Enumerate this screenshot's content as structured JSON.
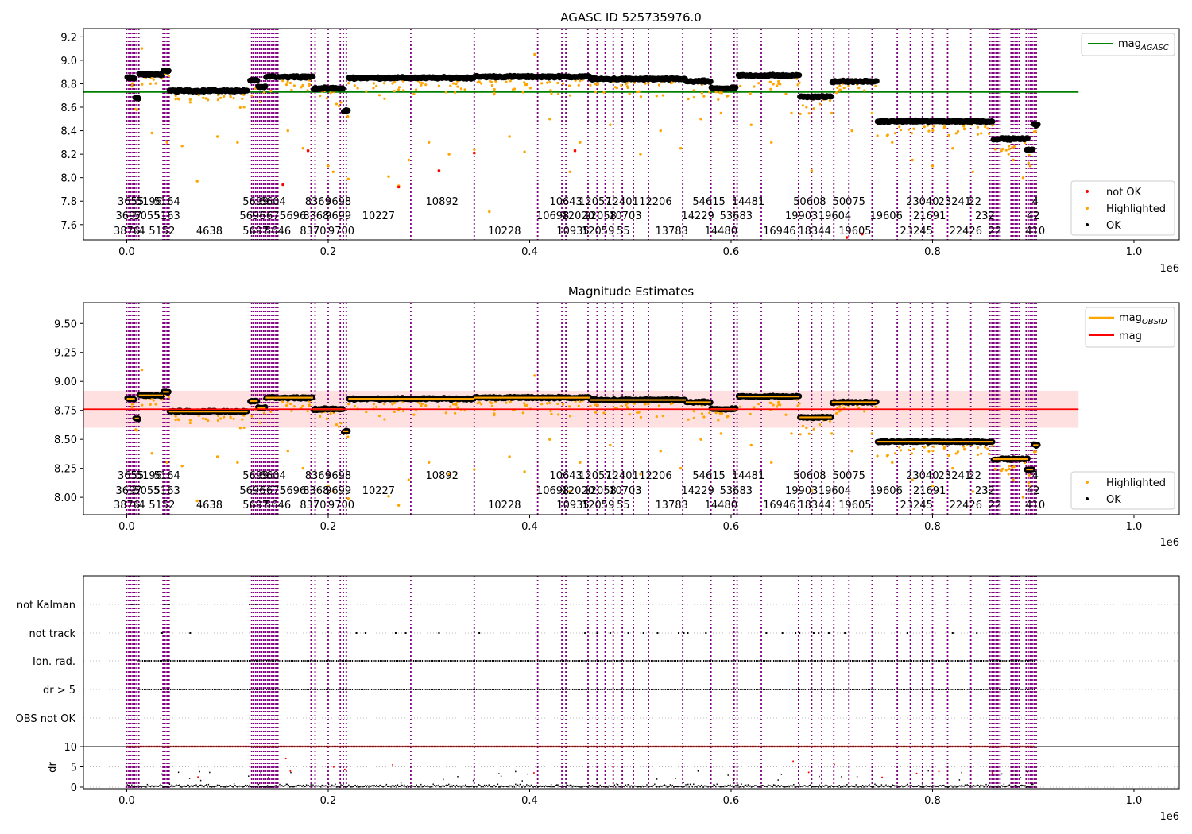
{
  "chart_data": [
    {
      "type": "scatter",
      "title": "AGASC ID 525735976.0",
      "xlabel": "",
      "ylabel": "",
      "xlim": [
        -43000,
        1045000
      ],
      "ylim": [
        7.47,
        9.27
      ],
      "xticks": [
        0.0,
        0.2,
        0.4,
        0.6,
        0.8,
        1.0
      ],
      "xtick_labels": [
        "0.0",
        "0.2",
        "0.4",
        "0.6",
        "0.8",
        "1.0"
      ],
      "x_offset_label": "1e6",
      "yticks": [
        7.6,
        7.8,
        8.0,
        8.2,
        8.4,
        8.6,
        8.8,
        9.0,
        9.2
      ],
      "ytick_labels": [
        "7.6",
        "7.8",
        "8.0",
        "8.2",
        "8.4",
        "8.6",
        "8.8",
        "9.0",
        "9.2"
      ],
      "reference_lines": [
        {
          "name": "magAGASC",
          "y": 8.73,
          "x": [
            -43000,
            945000
          ],
          "color": "#008000"
        }
      ],
      "legend_top": {
        "location": "upper right",
        "entries": [
          {
            "label": "mag",
            "subscript": "AGASC",
            "kind": "line",
            "color": "#008000"
          }
        ]
      },
      "legend_bottom": {
        "location": "lower right",
        "entries": [
          {
            "label": "not OK",
            "kind": "marker",
            "color": "#ff0000"
          },
          {
            "label": "Highlighted",
            "kind": "marker",
            "color": "#ffa500"
          },
          {
            "label": "OK",
            "kind": "marker",
            "color": "#000000"
          }
        ]
      },
      "segments": [
        {
          "x0": 0,
          "x1": 8000,
          "level": 8.85
        },
        {
          "x0": 8000,
          "x1": 12000,
          "level": 8.68
        },
        {
          "x0": 12000,
          "x1": 36000,
          "level": 8.88
        },
        {
          "x0": 36000,
          "x1": 42000,
          "level": 8.91
        },
        {
          "x0": 42000,
          "x1": 120000,
          "level": 8.74
        },
        {
          "x0": 122000,
          "x1": 130000,
          "level": 8.83
        },
        {
          "x0": 130000,
          "x1": 138000,
          "level": 8.77
        },
        {
          "x0": 138000,
          "x1": 185000,
          "level": 8.86
        },
        {
          "x0": 185000,
          "x1": 215000,
          "level": 8.76
        },
        {
          "x0": 215000,
          "x1": 220000,
          "level": 8.57
        },
        {
          "x0": 220000,
          "x1": 345000,
          "level": 8.85
        },
        {
          "x0": 345000,
          "x1": 460000,
          "level": 8.86
        },
        {
          "x0": 460000,
          "x1": 555000,
          "level": 8.84
        },
        {
          "x0": 555000,
          "x1": 580000,
          "level": 8.82
        },
        {
          "x0": 580000,
          "x1": 605000,
          "level": 8.76
        },
        {
          "x0": 607000,
          "x1": 668000,
          "level": 8.87
        },
        {
          "x0": 668000,
          "x1": 700000,
          "level": 8.69
        },
        {
          "x0": 700000,
          "x1": 745000,
          "level": 8.82
        },
        {
          "x0": 745000,
          "x1": 860000,
          "level": 8.48
        },
        {
          "x0": 860000,
          "x1": 875000,
          "level": 8.33
        },
        {
          "x0": 875000,
          "x1": 895000,
          "level": 8.33
        },
        {
          "x0": 893000,
          "x1": 900000,
          "level": 8.24
        },
        {
          "x0": 900000,
          "x1": 905000,
          "level": 8.45
        }
      ],
      "highlighted_points": [
        [
          15000,
          9.1
        ],
        [
          25000,
          8.38
        ],
        [
          40000,
          8.3
        ],
        [
          55000,
          8.27
        ],
        [
          70000,
          7.97
        ],
        [
          90000,
          8.35
        ],
        [
          110000,
          8.3
        ],
        [
          160000,
          8.4
        ],
        [
          175000,
          8.25
        ],
        [
          200000,
          8.1
        ],
        [
          205000,
          8.05
        ],
        [
          220000,
          7.99
        ],
        [
          260000,
          8.01
        ],
        [
          270000,
          7.93
        ],
        [
          280000,
          8.15
        ],
        [
          300000,
          8.3
        ],
        [
          320000,
          8.2
        ],
        [
          345000,
          8.24
        ],
        [
          360000,
          7.71
        ],
        [
          380000,
          8.35
        ],
        [
          395000,
          8.22
        ],
        [
          405000,
          9.05
        ],
        [
          420000,
          8.5
        ],
        [
          440000,
          8.05
        ],
        [
          450000,
          8.3
        ],
        [
          480000,
          8.45
        ],
        [
          510000,
          8.2
        ],
        [
          530000,
          8.4
        ],
        [
          550000,
          8.25
        ],
        [
          570000,
          8.5
        ],
        [
          590000,
          8.55
        ],
        [
          620000,
          8.45
        ],
        [
          640000,
          8.3
        ],
        [
          660000,
          8.55
        ],
        [
          680000,
          8.06
        ],
        [
          700000,
          8.55
        ],
        [
          720000,
          8.4
        ],
        [
          740000,
          8.55
        ],
        [
          760000,
          8.3
        ],
        [
          780000,
          8.15
        ],
        [
          800000,
          8.1
        ],
        [
          820000,
          8.25
        ],
        [
          840000,
          8.05
        ],
        [
          880000,
          8.15
        ],
        [
          890000,
          8.0
        ],
        [
          897000,
          8.1
        ]
      ],
      "notok_points": [
        [
          155000,
          7.94
        ],
        [
          180000,
          8.23
        ],
        [
          270000,
          7.92
        ],
        [
          310000,
          8.06
        ],
        [
          345000,
          8.21
        ],
        [
          445000,
          8.23
        ],
        [
          715000,
          7.49
        ],
        [
          730000,
          7.52
        ]
      ],
      "vlines_x": [
        0,
        2000,
        4000,
        6000,
        8000,
        10000,
        12000,
        36000,
        38000,
        40000,
        42000,
        124000,
        126000,
        128000,
        130000,
        132000,
        134000,
        136000,
        138000,
        140000,
        142000,
        144000,
        146000,
        148000,
        150000,
        183000,
        187000,
        200000,
        212000,
        215000,
        218000,
        282000,
        345000,
        408000,
        432000,
        436000,
        458000,
        467000,
        475000,
        483000,
        492000,
        503000,
        518000,
        552000,
        580000,
        603000,
        606000,
        630000,
        667000,
        680000,
        690000,
        702000,
        717000,
        740000,
        765000,
        778000,
        790000,
        800000,
        815000,
        838000,
        857000,
        859000,
        861000,
        863000,
        865000,
        867000,
        878000,
        880000,
        882000,
        884000,
        886000,
        893000,
        895000,
        897000,
        899000,
        901000,
        903000
      ],
      "obsid_labels": [
        {
          "text": "3655",
          "x": 4000,
          "row": 1
        },
        {
          "text": "5196",
          "x": 22000,
          "row": 1
        },
        {
          "text": "5164",
          "x": 40000,
          "row": 1
        },
        {
          "text": "3697",
          "x": 2000,
          "row": 2
        },
        {
          "text": "5055",
          "x": 20000,
          "row": 2
        },
        {
          "text": "5163",
          "x": 40000,
          "row": 2
        },
        {
          "text": "3876",
          "x": 0,
          "row": 3
        },
        {
          "text": "4",
          "x": 15000,
          "row": 3
        },
        {
          "text": "5152",
          "x": 35000,
          "row": 3
        },
        {
          "text": "4638",
          "x": 82000,
          "row": 3
        },
        {
          "text": "5699",
          "x": 128000,
          "row": 1
        },
        {
          "text": "6604",
          "x": 145000,
          "row": 1
        },
        {
          "text": "5696",
          "x": 125000,
          "row": 2
        },
        {
          "text": "5675",
          "x": 145000,
          "row": 2
        },
        {
          "text": "5696",
          "x": 165000,
          "row": 2
        },
        {
          "text": "5697",
          "x": 128000,
          "row": 3
        },
        {
          "text": "5646",
          "x": 150000,
          "row": 3
        },
        {
          "text": "8369",
          "x": 190000,
          "row": 1
        },
        {
          "text": "9698",
          "x": 210000,
          "row": 1
        },
        {
          "text": "8368",
          "x": 188000,
          "row": 2
        },
        {
          "text": "9699",
          "x": 210000,
          "row": 2
        },
        {
          "text": "10227",
          "x": 250000,
          "row": 2
        },
        {
          "text": "8370",
          "x": 185000,
          "row": 3
        },
        {
          "text": "9700",
          "x": 213000,
          "row": 3
        },
        {
          "text": "10892",
          "x": 313000,
          "row": 1
        },
        {
          "text": "10228",
          "x": 375000,
          "row": 3
        },
        {
          "text": "10643",
          "x": 436000,
          "row": 1
        },
        {
          "text": "12057",
          "x": 465000,
          "row": 1
        },
        {
          "text": "12401",
          "x": 492000,
          "row": 1
        },
        {
          "text": "12206",
          "x": 525000,
          "row": 1
        },
        {
          "text": "10698",
          "x": 423000,
          "row": 2
        },
        {
          "text": "12020",
          "x": 448000,
          "row": 2
        },
        {
          "text": "12058",
          "x": 470000,
          "row": 2
        },
        {
          "text": "10703",
          "x": 495000,
          "row": 2
        },
        {
          "text": "10935",
          "x": 443000,
          "row": 3
        },
        {
          "text": "12059",
          "x": 468000,
          "row": 3
        },
        {
          "text": "55",
          "x": 493000,
          "row": 3
        },
        {
          "text": "13783",
          "x": 541000,
          "row": 3
        },
        {
          "text": "54615",
          "x": 578000,
          "row": 1
        },
        {
          "text": "14481",
          "x": 617000,
          "row": 1
        },
        {
          "text": "14229",
          "x": 567000,
          "row": 2
        },
        {
          "text": "53683",
          "x": 605000,
          "row": 2
        },
        {
          "text": "14480",
          "x": 590000,
          "row": 3
        },
        {
          "text": "16946",
          "x": 648000,
          "row": 3
        },
        {
          "text": "18344",
          "x": 683000,
          "row": 3
        },
        {
          "text": "50608",
          "x": 678000,
          "row": 1
        },
        {
          "text": "50075",
          "x": 717000,
          "row": 1
        },
        {
          "text": "19903",
          "x": 670000,
          "row": 2
        },
        {
          "text": "19604",
          "x": 703000,
          "row": 2
        },
        {
          "text": "19605",
          "x": 723000,
          "row": 3
        },
        {
          "text": "19606",
          "x": 754000,
          "row": 2
        },
        {
          "text": "23040",
          "x": 790000,
          "row": 1
        },
        {
          "text": "23241",
          "x": 822000,
          "row": 1
        },
        {
          "text": "21691",
          "x": 797000,
          "row": 2
        },
        {
          "text": "23245",
          "x": 784000,
          "row": 3
        },
        {
          "text": "22426",
          "x": 833000,
          "row": 3
        },
        {
          "text": "22",
          "x": 842000,
          "row": 1
        },
        {
          "text": "232",
          "x": 852000,
          "row": 2
        },
        {
          "text": "22",
          "x": 862000,
          "row": 3
        },
        {
          "text": "4",
          "x": 902000,
          "row": 1
        },
        {
          "text": "42",
          "x": 900000,
          "row": 2
        },
        {
          "text": "410",
          "x": 902000,
          "row": 3
        }
      ]
    },
    {
      "type": "scatter",
      "title": "Magnitude Estimates",
      "xlabel": "",
      "ylabel": "",
      "xlim": [
        -43000,
        1045000
      ],
      "ylim": [
        7.85,
        9.68
      ],
      "xticks": [
        0.0,
        0.2,
        0.4,
        0.6,
        0.8,
        1.0
      ],
      "xtick_labels": [
        "0.0",
        "0.2",
        "0.4",
        "0.6",
        "0.8",
        "1.0"
      ],
      "x_offset_label": "1e6",
      "yticks": [
        8.0,
        8.25,
        8.5,
        8.75,
        9.0,
        9.25,
        9.5
      ],
      "ytick_labels": [
        "8.00",
        "8.25",
        "8.50",
        "8.75",
        "9.00",
        "9.25",
        "9.50"
      ],
      "mag": {
        "y": 8.76,
        "band": [
          8.6,
          8.92
        ],
        "x": [
          -43000,
          945000
        ],
        "color": "#ff0000"
      },
      "legend_top": {
        "location": "upper right",
        "entries": [
          {
            "label": "mag",
            "subscript": "OBSID",
            "kind": "line",
            "color": "#ffa500"
          },
          {
            "label": "mag",
            "kind": "line",
            "color": "#ff0000"
          }
        ]
      },
      "legend_bottom": {
        "location": "lower right",
        "entries": [
          {
            "label": "Highlighted",
            "kind": "marker",
            "color": "#ffa500"
          },
          {
            "label": "OK",
            "kind": "marker",
            "color": "#000000"
          }
        ]
      }
    },
    {
      "type": "scatter",
      "title": "",
      "xlabel": "",
      "ylabel": "",
      "flag_rows": [
        "not Kalman",
        "not track",
        "Ion. rad.",
        "dr > 5",
        "OBS not OK"
      ],
      "xlim": [
        -43000,
        1045000
      ],
      "xticks": [
        0.0,
        0.2,
        0.4,
        0.6,
        0.8,
        1.0
      ],
      "xtick_labels": [
        "0.0",
        "0.2",
        "0.4",
        "0.6",
        "0.8",
        "1.0"
      ],
      "x_offset_label": "1e6",
      "dr_ylabel": "dr",
      "dr_ylim": [
        -0.5,
        10.5
      ],
      "dr_yticks": [
        0,
        5,
        10
      ],
      "dr_ytick_labels": [
        "0",
        "5",
        "10"
      ],
      "notkalman_x": [
        5000,
        10000,
        38000,
        42000,
        122000,
        128000
      ],
      "nottrack_x": [
        35000,
        63000,
        228000,
        237000,
        267000,
        277000,
        310000,
        350000,
        455000,
        467000,
        480000,
        498000,
        513000,
        527000,
        548000,
        553000,
        557000,
        575000,
        635000,
        651000,
        664000,
        668000,
        682000,
        687000,
        697000,
        713000,
        775000,
        820000,
        844000
      ],
      "ionrad_range": [
        10000,
        902000
      ],
      "dr5_range": [
        10000,
        902000
      ]
    }
  ]
}
